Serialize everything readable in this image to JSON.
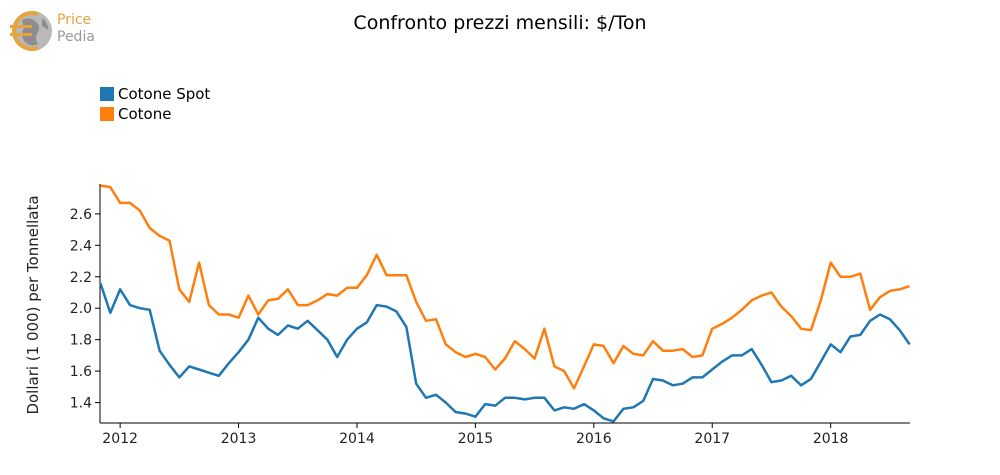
{
  "brand": {
    "line1": "Price",
    "line2": "Pedia"
  },
  "chart_data": {
    "type": "line",
    "title": "Confronto prezzi mensili: $/Ton",
    "ylabel": "Dollari (1 000) per Tonnellata",
    "xlabel": "",
    "ylim": [
      1.27,
      2.79
    ],
    "yticks": [
      1.4,
      1.6,
      1.8,
      2.0,
      2.2,
      2.4,
      2.6
    ],
    "xticks": [
      2012,
      2013,
      2014,
      2015,
      2016,
      2017,
      2018
    ],
    "xlim": [
      2011.83,
      2018.67
    ],
    "legend_position": "top-left",
    "series": [
      {
        "name": "Cotone Spot",
        "color": "#1f77b4",
        "x": [
          2011.833,
          2011.917,
          2012.0,
          2012.083,
          2012.167,
          2012.25,
          2012.333,
          2012.417,
          2012.5,
          2012.583,
          2012.667,
          2012.75,
          2012.833,
          2012.917,
          2013.0,
          2013.083,
          2013.167,
          2013.25,
          2013.333,
          2013.417,
          2013.5,
          2013.583,
          2013.667,
          2013.75,
          2013.833,
          2013.917,
          2014.0,
          2014.083,
          2014.167,
          2014.25,
          2014.333,
          2014.417,
          2014.5,
          2014.583,
          2014.667,
          2014.75,
          2014.833,
          2014.917,
          2015.0,
          2015.083,
          2015.167,
          2015.25,
          2015.333,
          2015.417,
          2015.5,
          2015.583,
          2015.667,
          2015.75,
          2015.833,
          2015.917,
          2016.0,
          2016.083,
          2016.167,
          2016.25,
          2016.333,
          2016.417,
          2016.5,
          2016.583,
          2016.667,
          2016.75,
          2016.833,
          2016.917,
          2017.0,
          2017.083,
          2017.167,
          2017.25,
          2017.333,
          2017.417,
          2017.5,
          2017.583,
          2017.667,
          2017.75,
          2017.833,
          2017.917,
          2018.0,
          2018.083,
          2018.167,
          2018.25,
          2018.333,
          2018.417,
          2018.5,
          2018.583,
          2018.667
        ],
        "values": [
          2.16,
          1.97,
          2.12,
          2.02,
          2.0,
          1.99,
          1.73,
          1.64,
          1.56,
          1.63,
          1.61,
          1.59,
          1.57,
          1.65,
          1.72,
          1.8,
          1.94,
          1.87,
          1.83,
          1.89,
          1.87,
          1.92,
          1.86,
          1.8,
          1.69,
          1.8,
          1.87,
          1.91,
          2.02,
          2.01,
          1.98,
          1.88,
          1.52,
          1.43,
          1.45,
          1.4,
          1.34,
          1.33,
          1.31,
          1.39,
          1.38,
          1.43,
          1.43,
          1.42,
          1.43,
          1.43,
          1.35,
          1.37,
          1.36,
          1.39,
          1.35,
          1.3,
          1.28,
          1.36,
          1.37,
          1.41,
          1.55,
          1.54,
          1.51,
          1.52,
          1.56,
          1.56,
          1.61,
          1.66,
          1.7,
          1.7,
          1.74,
          1.64,
          1.53,
          1.54,
          1.57,
          1.51,
          1.55,
          1.66,
          1.77,
          1.72,
          1.82,
          1.83,
          1.92,
          1.96,
          1.93,
          1.86,
          1.77
        ]
      },
      {
        "name": "Cotone",
        "color": "#ff7f0e",
        "x": [
          2011.833,
          2011.917,
          2012.0,
          2012.083,
          2012.167,
          2012.25,
          2012.333,
          2012.417,
          2012.5,
          2012.583,
          2012.667,
          2012.75,
          2012.833,
          2012.917,
          2013.0,
          2013.083,
          2013.167,
          2013.25,
          2013.333,
          2013.417,
          2013.5,
          2013.583,
          2013.667,
          2013.75,
          2013.833,
          2013.917,
          2014.0,
          2014.083,
          2014.167,
          2014.25,
          2014.333,
          2014.417,
          2014.5,
          2014.583,
          2014.667,
          2014.75,
          2014.833,
          2014.917,
          2015.0,
          2015.083,
          2015.167,
          2015.25,
          2015.333,
          2015.417,
          2015.5,
          2015.583,
          2015.667,
          2015.75,
          2015.833,
          2015.917,
          2016.0,
          2016.083,
          2016.167,
          2016.25,
          2016.333,
          2016.417,
          2016.5,
          2016.583,
          2016.667,
          2016.75,
          2016.833,
          2016.917,
          2017.0,
          2017.083,
          2017.167,
          2017.25,
          2017.333,
          2017.417,
          2017.5,
          2017.583,
          2017.667,
          2017.75,
          2017.833,
          2017.917,
          2018.0,
          2018.083,
          2018.167,
          2018.25,
          2018.333,
          2018.417,
          2018.5,
          2018.583,
          2018.667
        ],
        "values": [
          2.78,
          2.77,
          2.67,
          2.67,
          2.62,
          2.51,
          2.46,
          2.43,
          2.12,
          2.04,
          2.29,
          2.02,
          1.96,
          1.96,
          1.94,
          2.08,
          1.96,
          2.05,
          2.06,
          2.12,
          2.02,
          2.02,
          2.05,
          2.09,
          2.08,
          2.13,
          2.13,
          2.21,
          2.34,
          2.21,
          2.21,
          2.21,
          2.04,
          1.92,
          1.93,
          1.77,
          1.72,
          1.69,
          1.71,
          1.69,
          1.61,
          1.68,
          1.79,
          1.74,
          1.68,
          1.87,
          1.63,
          1.6,
          1.49,
          1.63,
          1.77,
          1.76,
          1.65,
          1.76,
          1.71,
          1.7,
          1.79,
          1.73,
          1.73,
          1.74,
          1.69,
          1.7,
          1.87,
          1.9,
          1.94,
          1.99,
          2.05,
          2.08,
          2.1,
          2.01,
          1.95,
          1.87,
          1.86,
          2.05,
          2.29,
          2.2,
          2.2,
          2.22,
          1.99,
          2.07,
          2.11,
          2.12,
          2.14
        ]
      }
    ]
  }
}
